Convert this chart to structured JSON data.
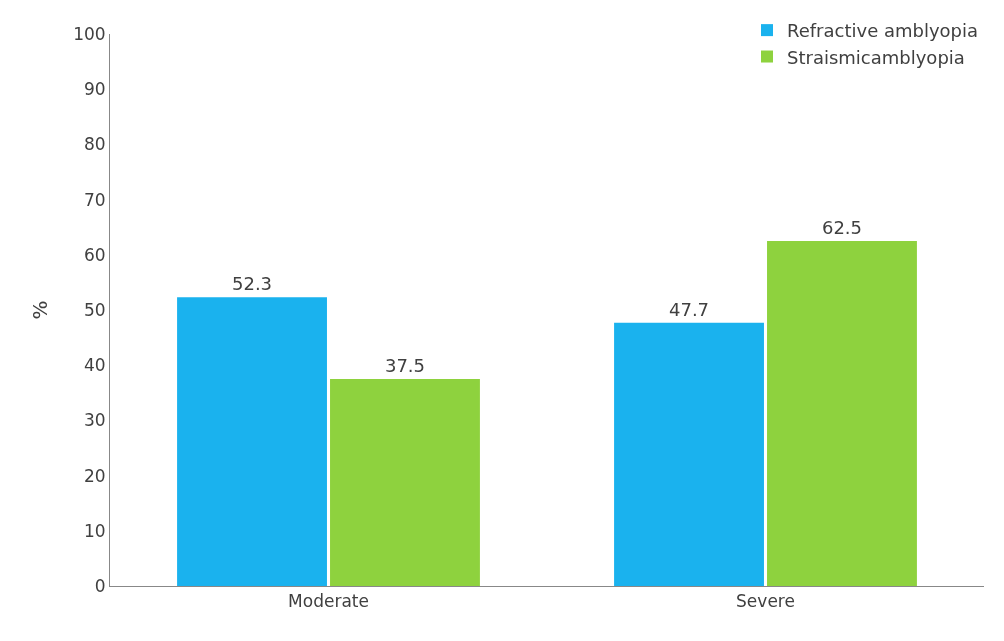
{
  "chart_data": {
    "type": "bar",
    "categories": [
      "Moderate",
      "Severe"
    ],
    "ylabel": "%",
    "series": [
      {
        "name": "Refractive amblyopia",
        "color": "#1ab2ee",
        "values": [
          52.3,
          47.7
        ]
      },
      {
        "name": "Straismicamblyopia",
        "color": "#8ed23e",
        "values": [
          37.5,
          62.5
        ]
      }
    ],
    "ylim": [
      0,
      100
    ],
    "yticks": [
      0,
      10,
      20,
      30,
      40,
      50,
      60,
      70,
      80,
      90,
      100
    ],
    "grid": false,
    "legend": "top right",
    "data_labels": true
  }
}
